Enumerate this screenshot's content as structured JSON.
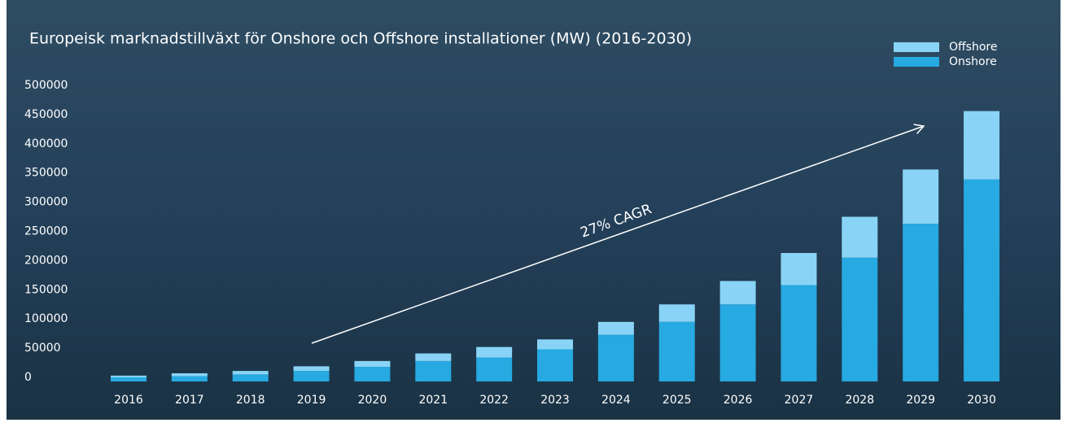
{
  "chart_data": {
    "type": "stacked-bar",
    "title": "Europeisk marknadstillväxt för Onshore och Offshore installationer (MW) (2016-2030)",
    "annotation": "27% CAGR",
    "categories": [
      "2016",
      "2017",
      "2018",
      "2019",
      "2020",
      "2021",
      "2022",
      "2023",
      "2024",
      "2025",
      "2026",
      "2027",
      "2028",
      "2029",
      "2030"
    ],
    "series": [
      {
        "name": "Onshore",
        "color": "#27a9e1",
        "values": [
          7000,
          9000,
          12000,
          18000,
          25000,
          35000,
          41000,
          55000,
          80000,
          102000,
          132000,
          165000,
          212000,
          270000,
          346000
        ]
      },
      {
        "name": "Offshore",
        "color": "#89d4f6",
        "values": [
          3000,
          5000,
          6000,
          8000,
          10000,
          13000,
          18000,
          17000,
          22000,
          30000,
          40000,
          55000,
          70000,
          93000,
          117000
        ]
      }
    ],
    "ylim": [
      0,
      500000
    ],
    "yticks": [
      0,
      50000,
      100000,
      150000,
      200000,
      250000,
      300000,
      350000,
      400000,
      450000,
      500000
    ],
    "legend": "top-right"
  }
}
